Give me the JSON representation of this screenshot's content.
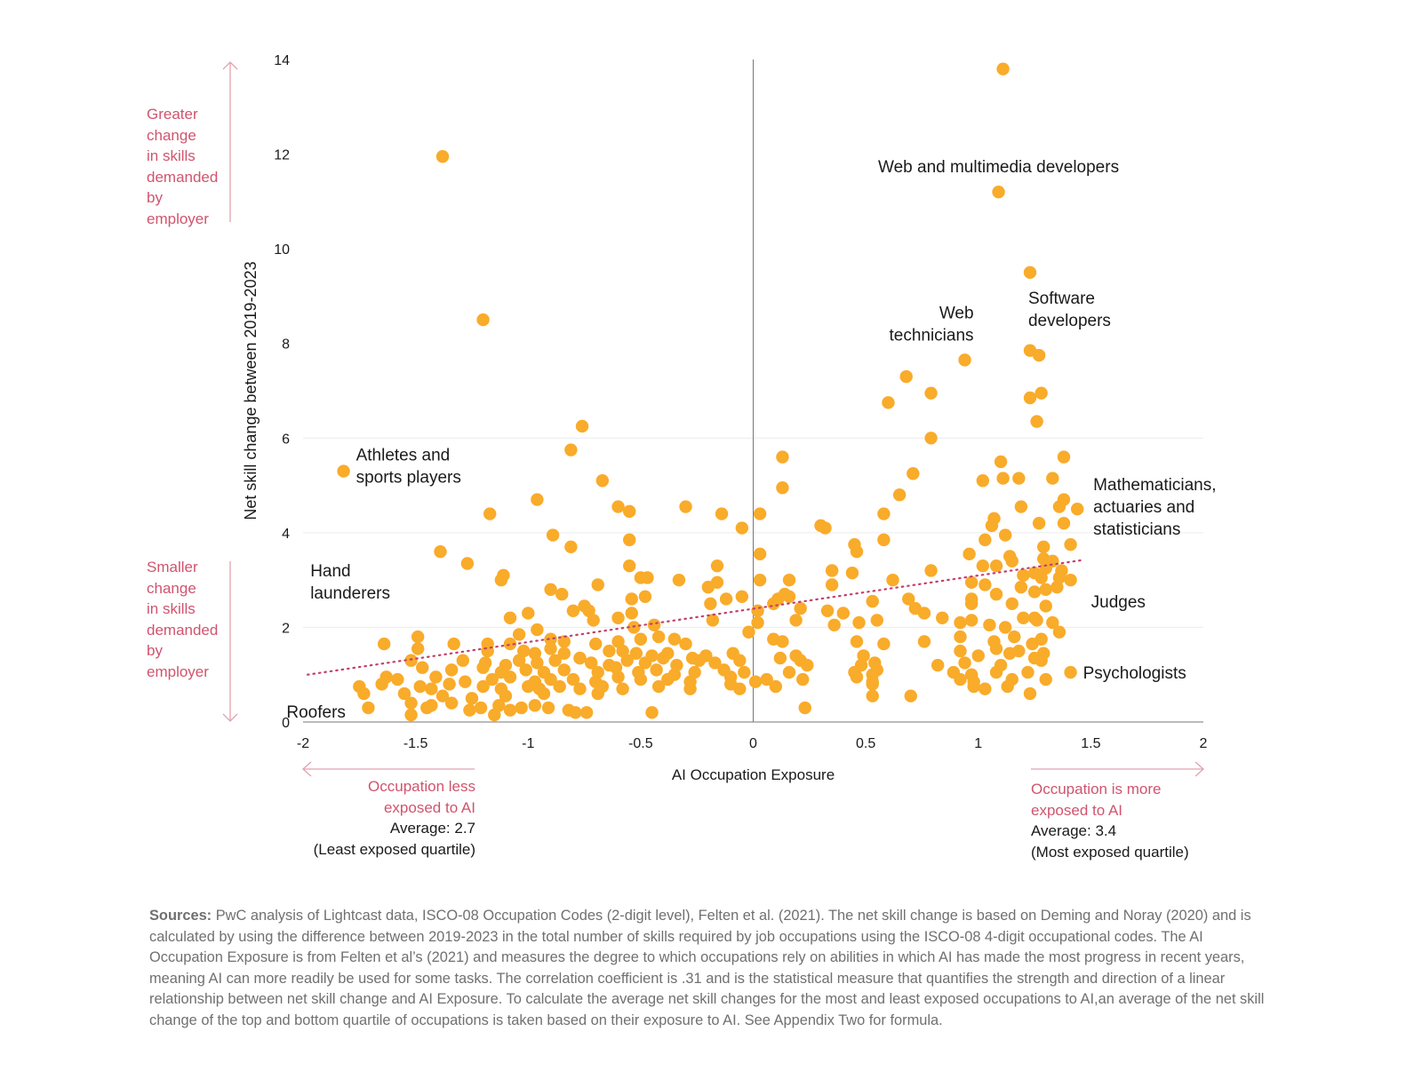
{
  "chart_data": {
    "type": "scatter",
    "title": "",
    "xlabel": "AI Occupation Exposure",
    "ylabel": "Net skill change between 2019-2023",
    "xlim": [
      -2,
      2
    ],
    "ylim": [
      0,
      14
    ],
    "x_ticks": [
      "-2",
      "-1.5",
      "-1",
      "-0.5",
      "0",
      "0.5",
      "1",
      "1.5",
      "2"
    ],
    "x_tick_values": [
      -2,
      -1.5,
      -1,
      -0.5,
      0,
      0.5,
      1,
      1.5,
      2
    ],
    "y_ticks": [
      "0",
      "2",
      "4",
      "6",
      "8",
      "10",
      "12",
      "14"
    ],
    "y_tick_values": [
      0,
      2,
      4,
      6,
      8,
      10,
      12,
      14
    ],
    "gridlines_y": [
      2,
      4,
      6
    ],
    "grid": true,
    "colors": {
      "points": "#F9AB2A",
      "trendline": "#C2406A",
      "annotation": "#D0546E",
      "zero_line": "#777777"
    },
    "trendline": {
      "style": "dotted",
      "x": [
        -1.98,
        1.46
      ],
      "y": [
        1.0,
        3.42
      ]
    },
    "correlation": 0.31,
    "labeled_points": [
      {
        "label": "Web and multimedia developers",
        "x": 1.09,
        "y": 11.2
      },
      {
        "label": "Software developers",
        "x": 1.23,
        "y": 9.5
      },
      {
        "label": "Web technicians",
        "x": 0.94,
        "y": 7.65
      },
      {
        "label": "Athletes and sports players",
        "x": -1.82,
        "y": 5.3
      },
      {
        "label": "Mathematicians, actuaries and statisticians",
        "x": 1.44,
        "y": 4.5
      },
      {
        "label": "Judges",
        "x": 1.43,
        "y": 2.55
      },
      {
        "label": "Hand launderers",
        "x": -1.94,
        "y": 2.2
      },
      {
        "label": "Psychologists",
        "x": 1.41,
        "y": 1.05
      },
      {
        "label": "Roofers",
        "x": -1.73,
        "y": 0.6
      }
    ],
    "points": [
      [
        1.11,
        13.8
      ],
      [
        1.09,
        11.2
      ],
      [
        -1.38,
        11.95
      ],
      [
        -1.2,
        8.5
      ],
      [
        1.23,
        9.5
      ],
      [
        0.94,
        7.65
      ],
      [
        1.23,
        7.85
      ],
      [
        1.27,
        7.75
      ],
      [
        0.6,
        6.75
      ],
      [
        0.68,
        7.3
      ],
      [
        0.79,
        6.95
      ],
      [
        1.23,
        6.85
      ],
      [
        1.28,
        6.95
      ],
      [
        1.26,
        6.35
      ],
      [
        0.79,
        6.0
      ],
      [
        -0.76,
        6.25
      ],
      [
        -0.81,
        5.75
      ],
      [
        -1.82,
        5.3
      ],
      [
        0.13,
        5.6
      ],
      [
        0.71,
        5.25
      ],
      [
        1.1,
        5.5
      ],
      [
        1.38,
        5.6
      ],
      [
        1.02,
        5.1
      ],
      [
        1.11,
        5.15
      ],
      [
        1.18,
        5.15
      ],
      [
        1.33,
        5.15
      ],
      [
        -0.67,
        5.1
      ],
      [
        0.13,
        4.95
      ],
      [
        0.65,
        4.8
      ],
      [
        1.19,
        4.55
      ],
      [
        1.38,
        4.7
      ],
      [
        1.36,
        4.55
      ],
      [
        1.44,
        4.5
      ],
      [
        -0.96,
        4.7
      ],
      [
        -0.6,
        4.55
      ],
      [
        -0.55,
        4.45
      ],
      [
        -0.3,
        4.55
      ],
      [
        -1.17,
        4.4
      ],
      [
        -0.14,
        4.4
      ],
      [
        0.03,
        4.4
      ],
      [
        0.58,
        4.4
      ],
      [
        1.07,
        4.3
      ],
      [
        1.06,
        4.15
      ],
      [
        1.27,
        4.2
      ],
      [
        1.38,
        4.2
      ],
      [
        -0.05,
        4.1
      ],
      [
        0.3,
        4.15
      ],
      [
        0.32,
        4.1
      ],
      [
        -0.89,
        3.95
      ],
      [
        1.12,
        3.95
      ],
      [
        1.03,
        3.85
      ],
      [
        -0.55,
        3.85
      ],
      [
        0.45,
        3.75
      ],
      [
        0.58,
        3.85
      ],
      [
        1.41,
        3.75
      ],
      [
        -0.81,
        3.7
      ],
      [
        -1.39,
        3.6
      ],
      [
        0.46,
        3.6
      ],
      [
        0.03,
        3.55
      ],
      [
        0.96,
        3.55
      ],
      [
        1.29,
        3.7
      ],
      [
        1.15,
        3.4
      ],
      [
        1.14,
        3.5
      ],
      [
        -1.27,
        3.35
      ],
      [
        -0.55,
        3.3
      ],
      [
        -0.16,
        3.3
      ],
      [
        1.02,
        3.3
      ],
      [
        1.08,
        3.3
      ],
      [
        1.33,
        3.4
      ],
      [
        1.29,
        3.45
      ],
      [
        -1.11,
        3.1
      ],
      [
        -1.12,
        3.0
      ],
      [
        0.35,
        3.2
      ],
      [
        0.44,
        3.15
      ],
      [
        0.79,
        3.2
      ],
      [
        1.3,
        3.25
      ],
      [
        1.37,
        3.2
      ],
      [
        1.36,
        3.05
      ],
      [
        1.41,
        3.0
      ],
      [
        -0.5,
        3.05
      ],
      [
        -0.47,
        3.05
      ],
      [
        -0.33,
        3.0
      ],
      [
        0.03,
        3.0
      ],
      [
        0.16,
        3.0
      ],
      [
        0.62,
        3.0
      ],
      [
        1.25,
        3.15
      ],
      [
        1.2,
        3.1
      ],
      [
        1.28,
        3.05
      ],
      [
        -0.9,
        2.8
      ],
      [
        -0.69,
        2.9
      ],
      [
        -0.2,
        2.85
      ],
      [
        -0.16,
        2.95
      ],
      [
        0.35,
        2.9
      ],
      [
        0.97,
        2.95
      ],
      [
        1.03,
        2.9
      ],
      [
        1.19,
        2.85
      ],
      [
        -0.85,
        2.7
      ],
      [
        -0.54,
        2.6
      ],
      [
        -0.48,
        2.65
      ],
      [
        -0.05,
        2.65
      ],
      [
        0.11,
        2.6
      ],
      [
        0.14,
        2.7
      ],
      [
        0.16,
        2.65
      ],
      [
        0.53,
        2.55
      ],
      [
        0.69,
        2.6
      ],
      [
        0.97,
        2.6
      ],
      [
        1.08,
        2.7
      ],
      [
        1.25,
        2.75
      ],
      [
        1.3,
        2.8
      ],
      [
        1.35,
        2.85
      ],
      [
        -0.75,
        2.45
      ],
      [
        -0.73,
        2.35
      ],
      [
        -0.8,
        2.35
      ],
      [
        -0.54,
        2.3
      ],
      [
        -0.19,
        2.5
      ],
      [
        -0.12,
        2.6
      ],
      [
        0.02,
        2.35
      ],
      [
        0.09,
        2.5
      ],
      [
        0.21,
        2.4
      ],
      [
        0.33,
        2.35
      ],
      [
        0.4,
        2.3
      ],
      [
        0.72,
        2.4
      ],
      [
        0.76,
        2.3
      ],
      [
        0.97,
        2.5
      ],
      [
        1.15,
        2.5
      ],
      [
        1.3,
        2.45
      ],
      [
        1.25,
        2.2
      ],
      [
        -1.08,
        2.2
      ],
      [
        -1.0,
        2.3
      ],
      [
        -0.71,
        2.15
      ],
      [
        -0.6,
        2.2
      ],
      [
        -0.53,
        2.0
      ],
      [
        -0.44,
        2.05
      ],
      [
        -0.18,
        2.15
      ],
      [
        0.02,
        2.1
      ],
      [
        0.19,
        2.15
      ],
      [
        0.36,
        2.05
      ],
      [
        0.47,
        2.1
      ],
      [
        0.55,
        2.15
      ],
      [
        0.84,
        2.2
      ],
      [
        0.92,
        2.1
      ],
      [
        0.97,
        2.15
      ],
      [
        1.05,
        2.05
      ],
      [
        1.12,
        2.0
      ],
      [
        1.2,
        2.2
      ],
      [
        1.26,
        2.15
      ],
      [
        1.33,
        2.1
      ],
      [
        1.36,
        1.9
      ],
      [
        -1.49,
        1.8
      ],
      [
        -1.33,
        1.65
      ],
      [
        -1.18,
        1.65
      ],
      [
        -1.04,
        1.85
      ],
      [
        -0.96,
        1.95
      ],
      [
        -0.9,
        1.75
      ],
      [
        -0.84,
        1.7
      ],
      [
        -0.7,
        1.65
      ],
      [
        -0.6,
        1.7
      ],
      [
        -0.5,
        1.75
      ],
      [
        -0.42,
        1.8
      ],
      [
        -0.35,
        1.75
      ],
      [
        -0.3,
        1.65
      ],
      [
        -0.02,
        1.9
      ],
      [
        0.09,
        1.75
      ],
      [
        0.13,
        1.7
      ],
      [
        0.46,
        1.7
      ],
      [
        0.58,
        1.65
      ],
      [
        0.76,
        1.7
      ],
      [
        0.92,
        1.8
      ],
      [
        1.07,
        1.7
      ],
      [
        1.16,
        1.8
      ],
      [
        1.24,
        1.65
      ],
      [
        1.28,
        1.75
      ],
      [
        -1.64,
        1.65
      ],
      [
        -1.49,
        1.55
      ],
      [
        -1.18,
        1.5
      ],
      [
        -1.08,
        1.65
      ],
      [
        -1.02,
        1.5
      ],
      [
        -0.97,
        1.45
      ],
      [
        -0.9,
        1.55
      ],
      [
        -0.84,
        1.45
      ],
      [
        -0.77,
        1.35
      ],
      [
        -0.64,
        1.5
      ],
      [
        -0.58,
        1.5
      ],
      [
        -0.52,
        1.45
      ],
      [
        -0.45,
        1.4
      ],
      [
        -0.38,
        1.45
      ],
      [
        -0.27,
        1.35
      ],
      [
        -0.21,
        1.4
      ],
      [
        -0.09,
        1.45
      ],
      [
        0.12,
        1.35
      ],
      [
        0.19,
        1.4
      ],
      [
        0.49,
        1.4
      ],
      [
        0.92,
        1.5
      ],
      [
        1.0,
        1.4
      ],
      [
        1.08,
        1.55
      ],
      [
        1.14,
        1.45
      ],
      [
        1.18,
        1.5
      ],
      [
        1.25,
        1.35
      ],
      [
        1.29,
        1.45
      ],
      [
        -1.52,
        1.3
      ],
      [
        -1.29,
        1.3
      ],
      [
        -1.19,
        1.25
      ],
      [
        -1.1,
        1.2
      ],
      [
        -1.04,
        1.3
      ],
      [
        -0.96,
        1.25
      ],
      [
        -0.88,
        1.3
      ],
      [
        -0.77,
        1.35
      ],
      [
        -0.72,
        1.25
      ],
      [
        -0.64,
        1.2
      ],
      [
        -0.56,
        1.3
      ],
      [
        -0.48,
        1.25
      ],
      [
        -0.4,
        1.35
      ],
      [
        -0.34,
        1.2
      ],
      [
        -0.24,
        1.3
      ],
      [
        -0.17,
        1.25
      ],
      [
        -0.06,
        1.3
      ],
      [
        0.21,
        1.3
      ],
      [
        0.24,
        1.2
      ],
      [
        0.48,
        1.2
      ],
      [
        0.54,
        1.25
      ],
      [
        0.82,
        1.2
      ],
      [
        0.94,
        1.25
      ],
      [
        1.1,
        1.2
      ],
      [
        1.28,
        1.3
      ],
      [
        -1.47,
        1.15
      ],
      [
        -1.34,
        1.1
      ],
      [
        -1.2,
        1.15
      ],
      [
        -1.12,
        1.05
      ],
      [
        -1.01,
        1.1
      ],
      [
        -0.93,
        1.05
      ],
      [
        -0.84,
        1.1
      ],
      [
        -0.69,
        1.05
      ],
      [
        -0.61,
        1.15
      ],
      [
        -0.51,
        1.05
      ],
      [
        -0.43,
        1.1
      ],
      [
        -0.35,
        1.0
      ],
      [
        -0.26,
        1.05
      ],
      [
        -0.13,
        1.1
      ],
      [
        -0.04,
        1.05
      ],
      [
        0.16,
        1.05
      ],
      [
        0.45,
        1.05
      ],
      [
        0.53,
        1.0
      ],
      [
        0.55,
        1.1
      ],
      [
        0.89,
        1.05
      ],
      [
        0.97,
        1.0
      ],
      [
        1.08,
        1.05
      ],
      [
        1.22,
        1.05
      ],
      [
        1.41,
        1.05
      ],
      [
        -1.63,
        0.95
      ],
      [
        -1.58,
        0.9
      ],
      [
        -1.41,
        0.95
      ],
      [
        -1.28,
        0.85
      ],
      [
        -1.16,
        0.9
      ],
      [
        -1.08,
        0.95
      ],
      [
        -0.97,
        0.85
      ],
      [
        -0.9,
        0.9
      ],
      [
        -0.8,
        0.9
      ],
      [
        -0.7,
        0.85
      ],
      [
        -0.6,
        0.95
      ],
      [
        -0.5,
        0.9
      ],
      [
        -0.38,
        0.9
      ],
      [
        -0.28,
        0.85
      ],
      [
        -0.1,
        0.95
      ],
      [
        0.06,
        0.9
      ],
      [
        0.22,
        0.9
      ],
      [
        0.46,
        0.95
      ],
      [
        0.53,
        0.85
      ],
      [
        0.92,
        0.9
      ],
      [
        0.98,
        0.85
      ],
      [
        1.15,
        0.9
      ],
      [
        1.3,
        0.9
      ],
      [
        -1.75,
        0.75
      ],
      [
        -1.65,
        0.8
      ],
      [
        -1.48,
        0.75
      ],
      [
        -1.43,
        0.7
      ],
      [
        -1.35,
        0.8
      ],
      [
        -1.2,
        0.75
      ],
      [
        -1.12,
        0.7
      ],
      [
        -1.0,
        0.75
      ],
      [
        -0.95,
        0.7
      ],
      [
        -0.86,
        0.75
      ],
      [
        -0.77,
        0.7
      ],
      [
        -0.67,
        0.75
      ],
      [
        -0.58,
        0.7
      ],
      [
        -0.42,
        0.75
      ],
      [
        -0.28,
        0.7
      ],
      [
        -0.1,
        0.8
      ],
      [
        0.01,
        0.85
      ],
      [
        0.1,
        0.75
      ],
      [
        0.53,
        0.8
      ],
      [
        0.7,
        0.55
      ],
      [
        0.98,
        0.75
      ],
      [
        1.03,
        0.7
      ],
      [
        1.13,
        0.75
      ],
      [
        1.23,
        0.6
      ],
      [
        -1.73,
        0.6
      ],
      [
        -1.55,
        0.6
      ],
      [
        -1.38,
        0.55
      ],
      [
        -1.25,
        0.5
      ],
      [
        -1.1,
        0.55
      ],
      [
        -0.93,
        0.6
      ],
      [
        -0.69,
        0.6
      ],
      [
        -0.06,
        0.7
      ],
      [
        0.53,
        0.55
      ],
      [
        -1.71,
        0.3
      ],
      [
        -1.52,
        0.4
      ],
      [
        -1.43,
        0.35
      ],
      [
        -1.34,
        0.4
      ],
      [
        -1.21,
        0.3
      ],
      [
        -1.13,
        0.35
      ],
      [
        -1.03,
        0.3
      ],
      [
        -0.97,
        0.35
      ],
      [
        -0.91,
        0.3
      ],
      [
        -0.82,
        0.25
      ],
      [
        -0.79,
        0.2
      ],
      [
        -0.74,
        0.2
      ],
      [
        -0.45,
        0.2
      ],
      [
        0.23,
        0.3
      ],
      [
        -1.52,
        0.15
      ],
      [
        -1.15,
        0.15
      ],
      [
        -1.08,
        0.25
      ],
      [
        -1.45,
        0.3
      ],
      [
        -1.26,
        0.25
      ]
    ]
  },
  "y_annotations": {
    "top": [
      "Greater",
      "change",
      "in skills",
      "demanded",
      "by",
      "employer"
    ],
    "bottom": [
      "Smaller",
      "change",
      "in skills",
      "demanded",
      "by",
      "employer"
    ]
  },
  "x_annotations": {
    "left": {
      "line1": "Occupation less",
      "line2": "exposed to AI",
      "average": "Average: 2.7",
      "quartile": "(Least exposed quartile)"
    },
    "right": {
      "line1": "Occupation is more",
      "line2": "exposed to AI",
      "average": "Average: 3.4",
      "quartile": "(Most exposed quartile)"
    }
  },
  "sources": {
    "label": "Sources:",
    "text": " PwC analysis of Lightcast data, ISCO-08 Occupation Codes (2-digit level), Felten et al. (2021). The net skill change is based on Deming and Noray (2020) and is calculated by using the difference between 2019-2023 in the total number of skills required by job occupations using the ISCO-08 4-digit occupational codes. The AI Occupation Exposure is from Felten et al’s (2021) and measures the degree to which occupations rely on abilities in which AI has made the most progress in recent years, meaning AI can more readily be used for some tasks. The correlation coefficient is .31 and is the statistical measure that quantifies the strength and direction of a linear relationship between net skill change and AI Exposure. To calculate the average net skill changes for the most and least exposed occupations to AI,an average of the net skill change of the top and bottom quartile of occupations is taken based on their exposure to AI. See Appendix Two for formula."
  }
}
